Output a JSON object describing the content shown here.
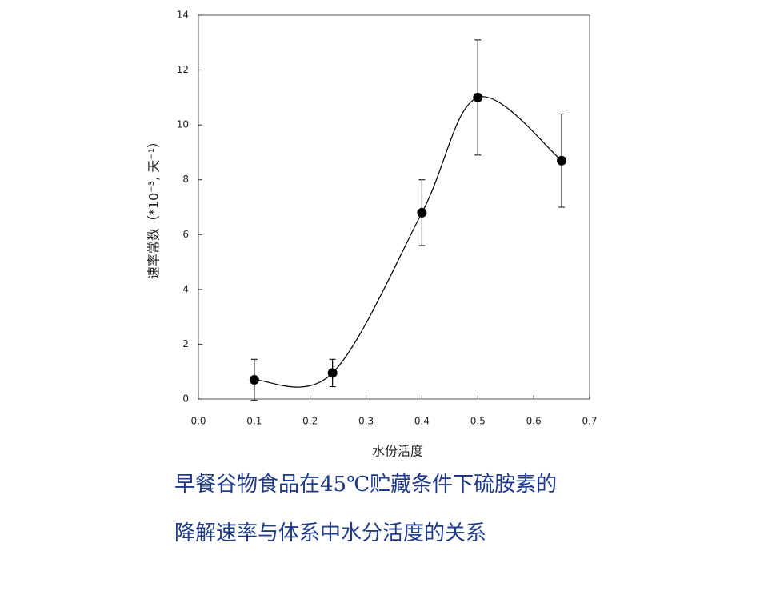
{
  "chart_data": {
    "type": "scatter",
    "xlabel": "水份活度",
    "ylabel": "速率常数（*10⁻³, 天⁻¹）",
    "x": [
      0.1,
      0.24,
      0.4,
      0.5,
      0.65
    ],
    "series": [
      {
        "color": "#000000",
        "values": [
          0.7,
          0.95,
          6.8,
          11.0,
          8.7
        ],
        "errors": [
          0.75,
          0.5,
          1.2,
          2.1,
          1.7
        ]
      }
    ],
    "smooth_line": true,
    "xlim": [
      0,
      0.7
    ],
    "xticks": [
      {
        "value": 0,
        "label": "0.0"
      },
      0.1,
      0.2,
      0.3,
      0.4,
      0.5,
      0.6,
      0.7
    ],
    "ylim": [
      0,
      14
    ],
    "yticks": [
      0,
      2,
      4,
      6,
      8,
      10,
      12,
      14
    ],
    "caption": [
      "早餐谷物食品在45℃贮藏条件下硫胺素的",
      "降解速率与体系中水分活度的关系"
    ]
  }
}
